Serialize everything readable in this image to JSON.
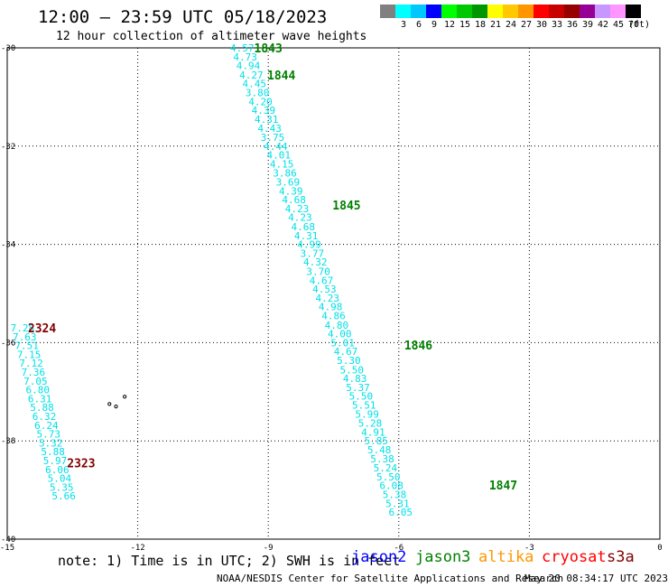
{
  "header": {
    "title": "12:00 – 23:59 UTC 05/18/2023",
    "subtitle": "12 hour collection of altimeter wave heights"
  },
  "color_scale": {
    "unit_label": "(ft)",
    "bins": [
      {
        "label": "",
        "color": "#808080"
      },
      {
        "label": "3",
        "color": "#00ffff"
      },
      {
        "label": "6",
        "color": "#00c8ff"
      },
      {
        "label": "9",
        "color": "#0000ff"
      },
      {
        "label": "12",
        "color": "#00ff00"
      },
      {
        "label": "15",
        "color": "#00c800"
      },
      {
        "label": "18",
        "color": "#009600"
      },
      {
        "label": "21",
        "color": "#ffff00"
      },
      {
        "label": "24",
        "color": "#ffc800"
      },
      {
        "label": "27",
        "color": "#ff9600"
      },
      {
        "label": "30",
        "color": "#ff0000"
      },
      {
        "label": "33",
        "color": "#c80000"
      },
      {
        "label": "36",
        "color": "#960000"
      },
      {
        "label": "39",
        "color": "#960096"
      },
      {
        "label": "42",
        "color": "#c896ff"
      },
      {
        "label": "45",
        "color": "#ff96ff"
      },
      {
        "label": "70",
        "color": "#000000"
      }
    ]
  },
  "chart_data": {
    "type": "scatter",
    "title": "12:00 – 23:59 UTC 05/18/2023",
    "subtitle": "12 hour collection of altimeter wave heights",
    "xlim": [
      -15,
      0
    ],
    "ylim": [
      -40,
      -30
    ],
    "x_ticks": [
      "-15",
      "-12",
      "-9",
      "-6",
      "-3",
      "0"
    ],
    "y_ticks": [
      "-30",
      "-32",
      "-34",
      "-36",
      "-38",
      "-40"
    ],
    "grid": true,
    "value_color": "#00e0e8",
    "tracks": [
      {
        "points": [
          {
            "x": -9.6,
            "y": -30.0,
            "v": "4.57"
          },
          {
            "x": -9.53,
            "y": -30.18,
            "v": "4.73"
          },
          {
            "x": -9.46,
            "y": -30.36,
            "v": "4.94"
          },
          {
            "x": -9.39,
            "y": -30.55,
            "v": "4.27"
          },
          {
            "x": -9.32,
            "y": -30.73,
            "v": "4.45"
          },
          {
            "x": -9.25,
            "y": -30.91,
            "v": "3.80"
          },
          {
            "x": -9.18,
            "y": -31.09,
            "v": "4.20"
          },
          {
            "x": -9.11,
            "y": -31.27,
            "v": "4.39"
          },
          {
            "x": -9.04,
            "y": -31.45,
            "v": "4.31"
          },
          {
            "x": -8.97,
            "y": -31.64,
            "v": "4.43"
          },
          {
            "x": -8.9,
            "y": -31.82,
            "v": "3.75"
          },
          {
            "x": -8.83,
            "y": -32.0,
            "v": "4.44"
          },
          {
            "x": -8.76,
            "y": -32.18,
            "v": "4.01"
          },
          {
            "x": -8.69,
            "y": -32.36,
            "v": "4.15"
          },
          {
            "x": -8.62,
            "y": -32.55,
            "v": "3.86"
          },
          {
            "x": -8.55,
            "y": -32.73,
            "v": "3.69"
          },
          {
            "x": -8.48,
            "y": -32.91,
            "v": "4.39"
          },
          {
            "x": -8.41,
            "y": -33.09,
            "v": "4.68"
          },
          {
            "x": -8.34,
            "y": -33.27,
            "v": "4.23"
          },
          {
            "x": -8.27,
            "y": -33.45,
            "v": "4.23"
          },
          {
            "x": -8.2,
            "y": -33.64,
            "v": "4.68"
          },
          {
            "x": -8.13,
            "y": -33.82,
            "v": "4.31"
          },
          {
            "x": -8.06,
            "y": -34.0,
            "v": "4.99"
          },
          {
            "x": -7.99,
            "y": -34.18,
            "v": "3.77"
          },
          {
            "x": -7.92,
            "y": -34.36,
            "v": "4.32"
          },
          {
            "x": -7.85,
            "y": -34.55,
            "v": "3.70"
          },
          {
            "x": -7.78,
            "y": -34.73,
            "v": "4.67"
          },
          {
            "x": -7.71,
            "y": -34.91,
            "v": "4.53"
          },
          {
            "x": -7.64,
            "y": -35.09,
            "v": "4.23"
          },
          {
            "x": -7.57,
            "y": -35.27,
            "v": "4.98"
          },
          {
            "x": -7.5,
            "y": -35.45,
            "v": "4.86"
          },
          {
            "x": -7.43,
            "y": -35.64,
            "v": "4.80"
          },
          {
            "x": -7.36,
            "y": -35.82,
            "v": "4.00"
          },
          {
            "x": -7.29,
            "y": -36.0,
            "v": "5.01"
          },
          {
            "x": -7.22,
            "y": -36.18,
            "v": "4.67"
          },
          {
            "x": -7.15,
            "y": -36.36,
            "v": "5.30"
          },
          {
            "x": -7.08,
            "y": -36.55,
            "v": "5.50"
          },
          {
            "x": -7.01,
            "y": -36.73,
            "v": "4.83"
          },
          {
            "x": -6.94,
            "y": -36.91,
            "v": "5.37"
          },
          {
            "x": -6.87,
            "y": -37.09,
            "v": "5.50"
          },
          {
            "x": -6.8,
            "y": -37.27,
            "v": "5.51"
          },
          {
            "x": -6.73,
            "y": -37.45,
            "v": "5.99"
          },
          {
            "x": -6.66,
            "y": -37.64,
            "v": "5.28"
          },
          {
            "x": -6.59,
            "y": -37.82,
            "v": "4.91"
          },
          {
            "x": -6.52,
            "y": -38.0,
            "v": "5.85"
          },
          {
            "x": -6.45,
            "y": -38.18,
            "v": "5.48"
          },
          {
            "x": -6.38,
            "y": -38.36,
            "v": "5.38"
          },
          {
            "x": -6.31,
            "y": -38.55,
            "v": "5.24"
          },
          {
            "x": -6.24,
            "y": -38.73,
            "v": "5.50"
          },
          {
            "x": -6.17,
            "y": -38.91,
            "v": "6.08"
          },
          {
            "x": -6.1,
            "y": -39.09,
            "v": "5.38"
          },
          {
            "x": -6.03,
            "y": -39.27,
            "v": "5.31"
          },
          {
            "x": -5.96,
            "y": -39.45,
            "v": "6.05"
          }
        ]
      },
      {
        "points": [
          {
            "x": -14.65,
            "y": -35.7,
            "v": "7.28"
          },
          {
            "x": -14.6,
            "y": -35.88,
            "v": "7.63"
          },
          {
            "x": -14.55,
            "y": -36.06,
            "v": "7.51"
          },
          {
            "x": -14.5,
            "y": -36.24,
            "v": "7.15"
          },
          {
            "x": -14.45,
            "y": -36.42,
            "v": "7.12"
          },
          {
            "x": -14.4,
            "y": -36.6,
            "v": "7.36"
          },
          {
            "x": -14.35,
            "y": -36.78,
            "v": "7.05"
          },
          {
            "x": -14.3,
            "y": -36.96,
            "v": "6.80"
          },
          {
            "x": -14.25,
            "y": -37.14,
            "v": "6.31"
          },
          {
            "x": -14.2,
            "y": -37.32,
            "v": "5.88"
          },
          {
            "x": -14.15,
            "y": -37.5,
            "v": "6.32"
          },
          {
            "x": -14.1,
            "y": -37.68,
            "v": "6.24"
          },
          {
            "x": -14.05,
            "y": -37.86,
            "v": "5.73"
          },
          {
            "x": -14.0,
            "y": -38.04,
            "v": "5.32"
          },
          {
            "x": -13.95,
            "y": -38.22,
            "v": "5.88"
          },
          {
            "x": -13.9,
            "y": -38.4,
            "v": "5.97"
          },
          {
            "x": -13.85,
            "y": -38.58,
            "v": "6.06"
          },
          {
            "x": -13.8,
            "y": -38.76,
            "v": "5.04"
          },
          {
            "x": -13.75,
            "y": -38.94,
            "v": "5.35"
          },
          {
            "x": -13.7,
            "y": -39.12,
            "v": "5.66"
          }
        ]
      }
    ],
    "time_labels": [
      {
        "x": -9.0,
        "y": -30.0,
        "text": "1843",
        "color": "#008000"
      },
      {
        "x": -8.7,
        "y": -30.55,
        "text": "1844",
        "color": "#008000"
      },
      {
        "x": -7.2,
        "y": -33.2,
        "text": "1845",
        "color": "#008000"
      },
      {
        "x": -5.55,
        "y": -36.05,
        "text": "1846",
        "color": "#008000"
      },
      {
        "x": -3.6,
        "y": -38.9,
        "text": "1847",
        "color": "#008000"
      },
      {
        "x": -14.2,
        "y": -35.7,
        "text": "2324",
        "color": "#800000"
      },
      {
        "x": -13.3,
        "y": -38.45,
        "text": "2323",
        "color": "#800000"
      }
    ],
    "island_points": [
      {
        "x": -12.3,
        "y": -37.1
      },
      {
        "x": -12.65,
        "y": -37.25
      },
      {
        "x": -12.5,
        "y": -37.3
      }
    ]
  },
  "footer": {
    "note": "note: 1) Time is in UTC; 2) SWH is in feet",
    "satellites": [
      {
        "name": "jason2",
        "color": "#0000ff"
      },
      {
        "name": "jason3",
        "color": "#008000"
      },
      {
        "name": "altika",
        "color": "#ff9600"
      },
      {
        "name": "cryosat",
        "color": "#ff0000"
      },
      {
        "name": "s3a",
        "color": "#800000"
      }
    ],
    "credit": "NOAA/NESDIS Center for Satellite Applications and Research",
    "timestamp": "May 20 08:34:17 UTC 2023"
  }
}
